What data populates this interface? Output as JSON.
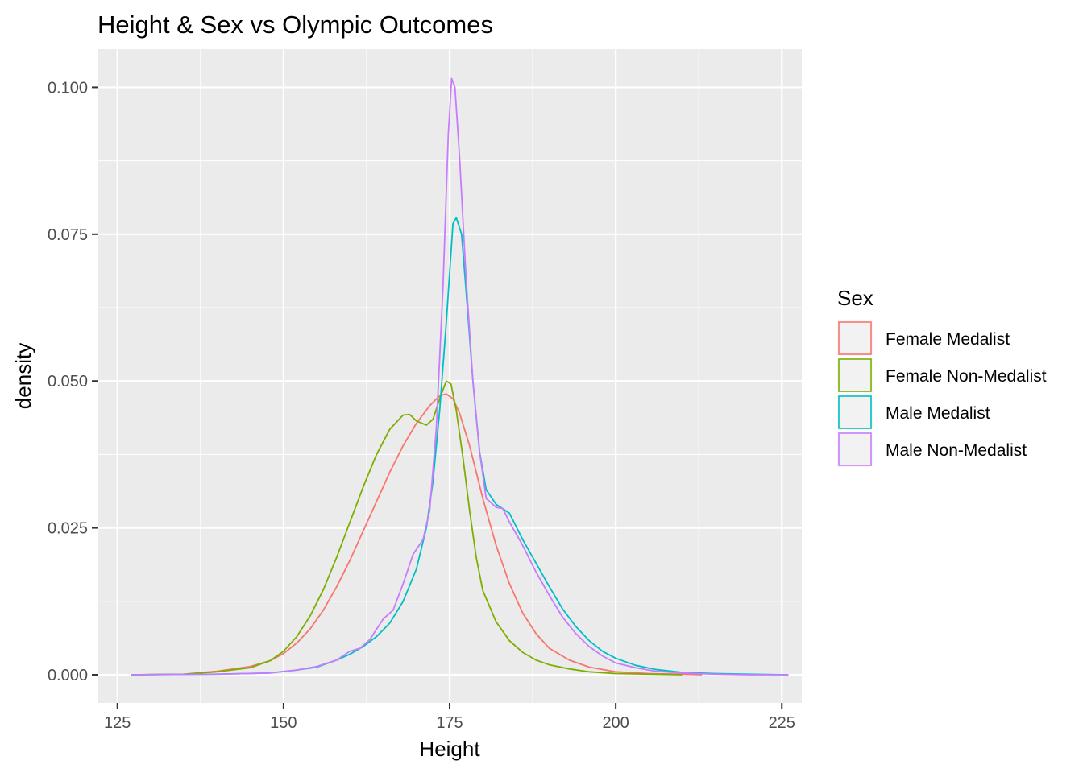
{
  "chart_data": {
    "type": "line",
    "title": "Height & Sex vs Olympic Outcomes",
    "xlabel": "Height",
    "ylabel": "density",
    "xlim": [
      122,
      228
    ],
    "ylim": [
      -0.0048,
      0.1065
    ],
    "x_ticks": [
      125,
      150,
      175,
      200,
      225
    ],
    "x_tick_labels": [
      "125",
      "150",
      "175",
      "200",
      "225"
    ],
    "y_ticks": [
      0.0,
      0.025,
      0.05,
      0.075,
      0.1
    ],
    "y_tick_labels": [
      "0.000",
      "0.025",
      "0.050",
      "0.075",
      "0.100"
    ],
    "grid": true,
    "legend": {
      "title": "Sex",
      "position": "right"
    },
    "series": [
      {
        "name": "Female Medalist",
        "color": "#F8766D",
        "points": [
          [
            127,
            0.0
          ],
          [
            135,
            0.0001
          ],
          [
            140,
            0.0006
          ],
          [
            145,
            0.0014
          ],
          [
            148,
            0.0024
          ],
          [
            150,
            0.0036
          ],
          [
            152,
            0.0054
          ],
          [
            154,
            0.0078
          ],
          [
            156,
            0.011
          ],
          [
            158,
            0.015
          ],
          [
            160,
            0.0195
          ],
          [
            162,
            0.0245
          ],
          [
            164,
            0.0295
          ],
          [
            166,
            0.0345
          ],
          [
            168,
            0.039
          ],
          [
            170,
            0.0428
          ],
          [
            172,
            0.0458
          ],
          [
            173.5,
            0.0475
          ],
          [
            174.5,
            0.0478
          ],
          [
            175.5,
            0.047
          ],
          [
            176.5,
            0.0445
          ],
          [
            178,
            0.039
          ],
          [
            180,
            0.03
          ],
          [
            182,
            0.022
          ],
          [
            184,
            0.0155
          ],
          [
            186,
            0.0105
          ],
          [
            188,
            0.007
          ],
          [
            190,
            0.0045
          ],
          [
            193,
            0.0025
          ],
          [
            196,
            0.0013
          ],
          [
            200,
            0.0005
          ],
          [
            205,
            0.0002
          ],
          [
            210,
            0.0001
          ],
          [
            213,
            0.0
          ]
        ]
      },
      {
        "name": "Female Non-Medalist",
        "color": "#7CAE00",
        "points": [
          [
            127,
            0.0
          ],
          [
            135,
            0.0001
          ],
          [
            140,
            0.0005
          ],
          [
            145,
            0.0012
          ],
          [
            148,
            0.0024
          ],
          [
            150,
            0.004
          ],
          [
            152,
            0.0065
          ],
          [
            154,
            0.01
          ],
          [
            156,
            0.0145
          ],
          [
            158,
            0.02
          ],
          [
            160,
            0.026
          ],
          [
            162,
            0.032
          ],
          [
            164,
            0.0375
          ],
          [
            166,
            0.0418
          ],
          [
            168,
            0.0442
          ],
          [
            169,
            0.0443
          ],
          [
            170,
            0.0432
          ],
          [
            171.5,
            0.0425
          ],
          [
            172.5,
            0.0435
          ],
          [
            173.5,
            0.047
          ],
          [
            174.5,
            0.05
          ],
          [
            175.2,
            0.0495
          ],
          [
            176,
            0.045
          ],
          [
            177,
            0.037
          ],
          [
            178,
            0.028
          ],
          [
            179,
            0.02
          ],
          [
            180,
            0.0143
          ],
          [
            182,
            0.009
          ],
          [
            184,
            0.0058
          ],
          [
            186,
            0.0038
          ],
          [
            188,
            0.0025
          ],
          [
            190,
            0.0017
          ],
          [
            193,
            0.001
          ],
          [
            196,
            0.0005
          ],
          [
            200,
            0.0002
          ],
          [
            205,
            0.0001
          ],
          [
            210,
            0.0
          ]
        ]
      },
      {
        "name": "Male Medalist",
        "color": "#00BFC4",
        "points": [
          [
            127,
            0.0
          ],
          [
            140,
            0.0001
          ],
          [
            148,
            0.0003
          ],
          [
            152,
            0.0008
          ],
          [
            155,
            0.0013
          ],
          [
            158,
            0.0025
          ],
          [
            160,
            0.0035
          ],
          [
            162,
            0.0048
          ],
          [
            164,
            0.0065
          ],
          [
            166,
            0.0088
          ],
          [
            168,
            0.0125
          ],
          [
            170,
            0.018
          ],
          [
            171.5,
            0.025
          ],
          [
            172.5,
            0.033
          ],
          [
            173.5,
            0.045
          ],
          [
            174.5,
            0.06
          ],
          [
            175.5,
            0.0768
          ],
          [
            176,
            0.0778
          ],
          [
            176.8,
            0.075
          ],
          [
            177.5,
            0.065
          ],
          [
            178.5,
            0.05
          ],
          [
            179.5,
            0.038
          ],
          [
            180.5,
            0.0315
          ],
          [
            182,
            0.029
          ],
          [
            184,
            0.0275
          ],
          [
            186,
            0.023
          ],
          [
            188,
            0.019
          ],
          [
            190,
            0.015
          ],
          [
            192,
            0.0112
          ],
          [
            194,
            0.0082
          ],
          [
            196,
            0.0058
          ],
          [
            198,
            0.004
          ],
          [
            200,
            0.0028
          ],
          [
            203,
            0.0016
          ],
          [
            206,
            0.0009
          ],
          [
            210,
            0.0004
          ],
          [
            215,
            0.0002
          ],
          [
            220,
            0.0001
          ],
          [
            226,
            0.0
          ]
        ]
      },
      {
        "name": "Male Non-Medalist",
        "color": "#C77CFF",
        "points": [
          [
            127,
            0.0
          ],
          [
            140,
            0.0001
          ],
          [
            148,
            0.0003
          ],
          [
            152,
            0.0008
          ],
          [
            155,
            0.0014
          ],
          [
            158,
            0.0025
          ],
          [
            160,
            0.004
          ],
          [
            161.5,
            0.0045
          ],
          [
            163,
            0.006
          ],
          [
            165,
            0.0095
          ],
          [
            166.5,
            0.011
          ],
          [
            168,
            0.0155
          ],
          [
            169.5,
            0.0205
          ],
          [
            171,
            0.023
          ],
          [
            172,
            0.028
          ],
          [
            173,
            0.042
          ],
          [
            174,
            0.066
          ],
          [
            174.8,
            0.092
          ],
          [
            175.3,
            0.1015
          ],
          [
            175.8,
            0.1
          ],
          [
            176.5,
            0.088
          ],
          [
            177.5,
            0.067
          ],
          [
            178.5,
            0.05
          ],
          [
            179.5,
            0.038
          ],
          [
            180.5,
            0.03
          ],
          [
            182,
            0.0285
          ],
          [
            183,
            0.0283
          ],
          [
            184,
            0.026
          ],
          [
            186,
            0.022
          ],
          [
            188,
            0.0175
          ],
          [
            190,
            0.0135
          ],
          [
            192,
            0.0098
          ],
          [
            194,
            0.007
          ],
          [
            196,
            0.0048
          ],
          [
            198,
            0.0032
          ],
          [
            200,
            0.002
          ],
          [
            203,
            0.0012
          ],
          [
            206,
            0.0006
          ],
          [
            210,
            0.0003
          ],
          [
            215,
            0.0001
          ],
          [
            220,
            0.0
          ],
          [
            226,
            0.0
          ]
        ]
      }
    ]
  }
}
